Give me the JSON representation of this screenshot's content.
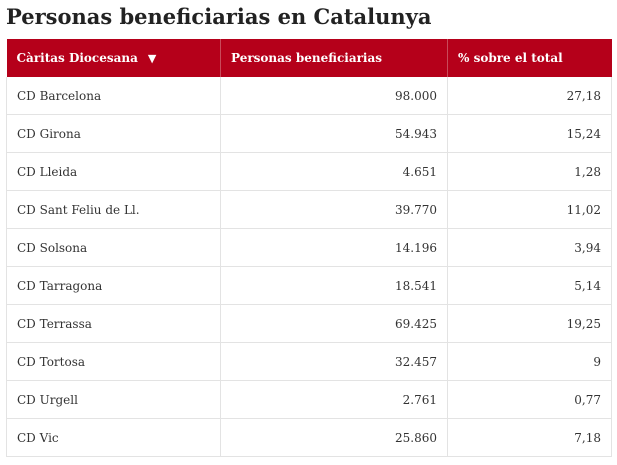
{
  "title": "Personas beneficiarias en Catalunya",
  "table": {
    "headers": [
      "Càritas Diocesana",
      "Personas beneficiarias",
      "% sobre el total"
    ],
    "sort_indicator": "▼",
    "rows": [
      {
        "name": "CD Barcelona",
        "beneficiarias": "98.000",
        "percent": "27,18"
      },
      {
        "name": "CD Girona",
        "beneficiarias": "54.943",
        "percent": "15,24"
      },
      {
        "name": "CD Lleida",
        "beneficiarias": "4.651",
        "percent": "1,28"
      },
      {
        "name": "CD Sant Feliu de Ll.",
        "beneficiarias": "39.770",
        "percent": "11,02"
      },
      {
        "name": "CD Solsona",
        "beneficiarias": "14.196",
        "percent": "3,94"
      },
      {
        "name": "CD Tarragona",
        "beneficiarias": "18.541",
        "percent": "5,14"
      },
      {
        "name": "CD Terrassa",
        "beneficiarias": "69.425",
        "percent": "19,25"
      },
      {
        "name": "CD Tortosa",
        "beneficiarias": "32.457",
        "percent": "9"
      },
      {
        "name": "CD Urgell",
        "beneficiarias": "2.761",
        "percent": "0,77"
      },
      {
        "name": "CD Vic",
        "beneficiarias": "25.860",
        "percent": "7,18"
      }
    ]
  },
  "colors": {
    "header_bg": "#b5001a",
    "header_text": "#ffffff",
    "border": "#e3e3e3"
  }
}
